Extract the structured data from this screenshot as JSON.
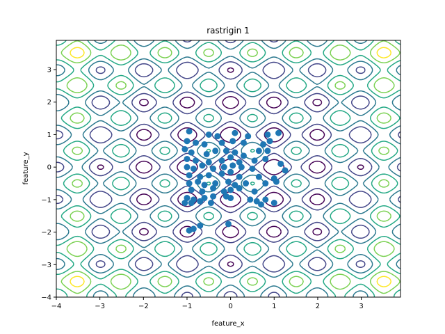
{
  "chart_data": {
    "type": "scatter",
    "title": "rastrigin 1",
    "xlabel": "feature_x",
    "ylabel": "feature_y",
    "xlim": [
      -4,
      3.9
    ],
    "ylim": [
      -4,
      3.9
    ],
    "xticks": [
      -4,
      -3,
      -2,
      -1,
      0,
      1,
      2,
      3
    ],
    "yticks": [
      -4,
      -3,
      -2,
      -1,
      0,
      1,
      2,
      3
    ],
    "grid": false,
    "background": "contour",
    "contour_function": "rastrigin",
    "contour_colormap": "viridis",
    "contour_levels": [
      10,
      20,
      30,
      40,
      50,
      60
    ],
    "marker_color": "#1f77b4",
    "points": [
      [
        -0.95,
        1.1
      ],
      [
        -0.5,
        1.0
      ],
      [
        -0.3,
        0.95
      ],
      [
        0.1,
        1.05
      ],
      [
        0.4,
        0.95
      ],
      [
        0.85,
        1.0
      ],
      [
        1.1,
        1.05
      ],
      [
        -1.0,
        0.8
      ],
      [
        -0.8,
        0.75
      ],
      [
        -0.6,
        0.7
      ],
      [
        -0.2,
        0.75
      ],
      [
        0.05,
        0.8
      ],
      [
        0.3,
        0.75
      ],
      [
        0.75,
        0.7
      ],
      [
        0.9,
        0.8
      ],
      [
        -1.05,
        0.55
      ],
      [
        -0.9,
        0.45
      ],
      [
        -0.55,
        0.4
      ],
      [
        -0.35,
        0.5
      ],
      [
        -0.1,
        0.5
      ],
      [
        0.1,
        0.45
      ],
      [
        0.3,
        0.35
      ],
      [
        0.65,
        0.5
      ],
      [
        0.85,
        0.5
      ],
      [
        -1.0,
        0.25
      ],
      [
        -0.8,
        0.2
      ],
      [
        -0.5,
        0.15
      ],
      [
        -0.2,
        0.2
      ],
      [
        0.0,
        0.3
      ],
      [
        0.2,
        0.15
      ],
      [
        0.55,
        0.2
      ],
      [
        0.8,
        0.25
      ],
      [
        -1.0,
        0.0
      ],
      [
        -0.85,
        -0.05
      ],
      [
        -0.65,
        0.05
      ],
      [
        -0.4,
        -0.05
      ],
      [
        -0.15,
        0.0
      ],
      [
        0.05,
        0.05
      ],
      [
        0.25,
        0.0
      ],
      [
        0.5,
        -0.05
      ],
      [
        1.15,
        0.1
      ],
      [
        1.25,
        -0.1
      ],
      [
        -0.95,
        -0.25
      ],
      [
        -0.7,
        -0.3
      ],
      [
        -0.5,
        -0.25
      ],
      [
        -0.2,
        -0.2
      ],
      [
        0.0,
        -0.15
      ],
      [
        0.2,
        -0.3
      ],
      [
        0.65,
        -0.3
      ],
      [
        1.0,
        -0.35
      ],
      [
        -0.95,
        -0.5
      ],
      [
        -0.75,
        -0.45
      ],
      [
        -0.6,
        -0.55
      ],
      [
        -0.35,
        -0.5
      ],
      [
        -0.05,
        -0.45
      ],
      [
        0.1,
        -0.55
      ],
      [
        0.35,
        -0.5
      ],
      [
        0.8,
        -0.5
      ],
      [
        1.05,
        -0.45
      ],
      [
        -0.9,
        -0.7
      ],
      [
        -0.65,
        -0.75
      ],
      [
        -0.4,
        -0.65
      ],
      [
        -0.15,
        -0.75
      ],
      [
        0.0,
        -0.7
      ],
      [
        0.2,
        -0.65
      ],
      [
        0.55,
        -0.75
      ],
      [
        -1.0,
        -0.95
      ],
      [
        -0.85,
        -1.0
      ],
      [
        -0.6,
        -0.95
      ],
      [
        -0.4,
        -0.9
      ],
      [
        -0.1,
        -0.9
      ],
      [
        0.0,
        -0.95
      ],
      [
        0.45,
        -1.0
      ],
      [
        0.6,
        -1.05
      ],
      [
        0.8,
        -1.0
      ],
      [
        1.0,
        -1.1
      ],
      [
        -1.05,
        -1.1
      ],
      [
        -0.9,
        -1.1
      ],
      [
        -0.7,
        -1.05
      ],
      [
        -0.45,
        -1.1
      ],
      [
        0.7,
        -1.15
      ],
      [
        -0.95,
        -1.95
      ],
      [
        -0.85,
        -1.9
      ],
      [
        -0.7,
        -1.8
      ],
      [
        -0.05,
        -1.75
      ]
    ]
  }
}
